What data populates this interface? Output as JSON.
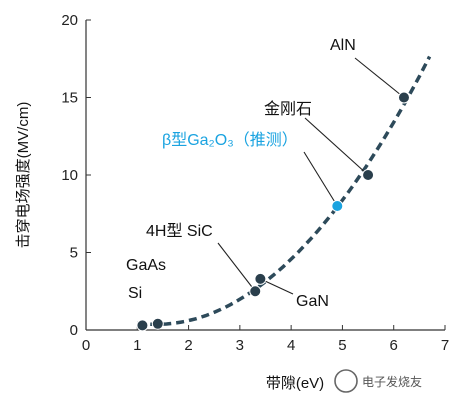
{
  "chart_data": {
    "type": "scatter",
    "xlabel": "带隙(eV)",
    "ylabel": "击穿电场强度(MV/cm)",
    "xlim": [
      0,
      7
    ],
    "ylim": [
      0,
      20
    ],
    "x_ticks": [
      "0",
      "1",
      "2",
      "3",
      "4",
      "5",
      "6",
      "7"
    ],
    "y_ticks": [
      "0",
      "5",
      "10",
      "15",
      "20"
    ],
    "grid": false,
    "series": [
      {
        "points": [
          {
            "label": "Si",
            "x": 1.1,
            "y": 0.3
          },
          {
            "label": "GaAs",
            "x": 1.4,
            "y": 0.4
          },
          {
            "label": "4H型 SiC",
            "x": 3.3,
            "y": 2.5
          },
          {
            "label": "GaN",
            "x": 3.4,
            "y": 3.3
          },
          {
            "label": "β型Ga₂O₃（推测）",
            "x": 4.9,
            "y": 8.0,
            "estimated": true
          },
          {
            "label": "金刚石",
            "x": 5.5,
            "y": 10.0
          },
          {
            "label": "AlN",
            "x": 6.2,
            "y": 15.0
          }
        ]
      }
    ],
    "trend": {
      "style": "dashed",
      "x_range": [
        1.0,
        6.7
      ]
    },
    "colors": {
      "marker": "#2a3f4c",
      "highlight": "#1aa3e0",
      "trend": "#2d4a5a"
    }
  },
  "watermark": "电子发烧友"
}
